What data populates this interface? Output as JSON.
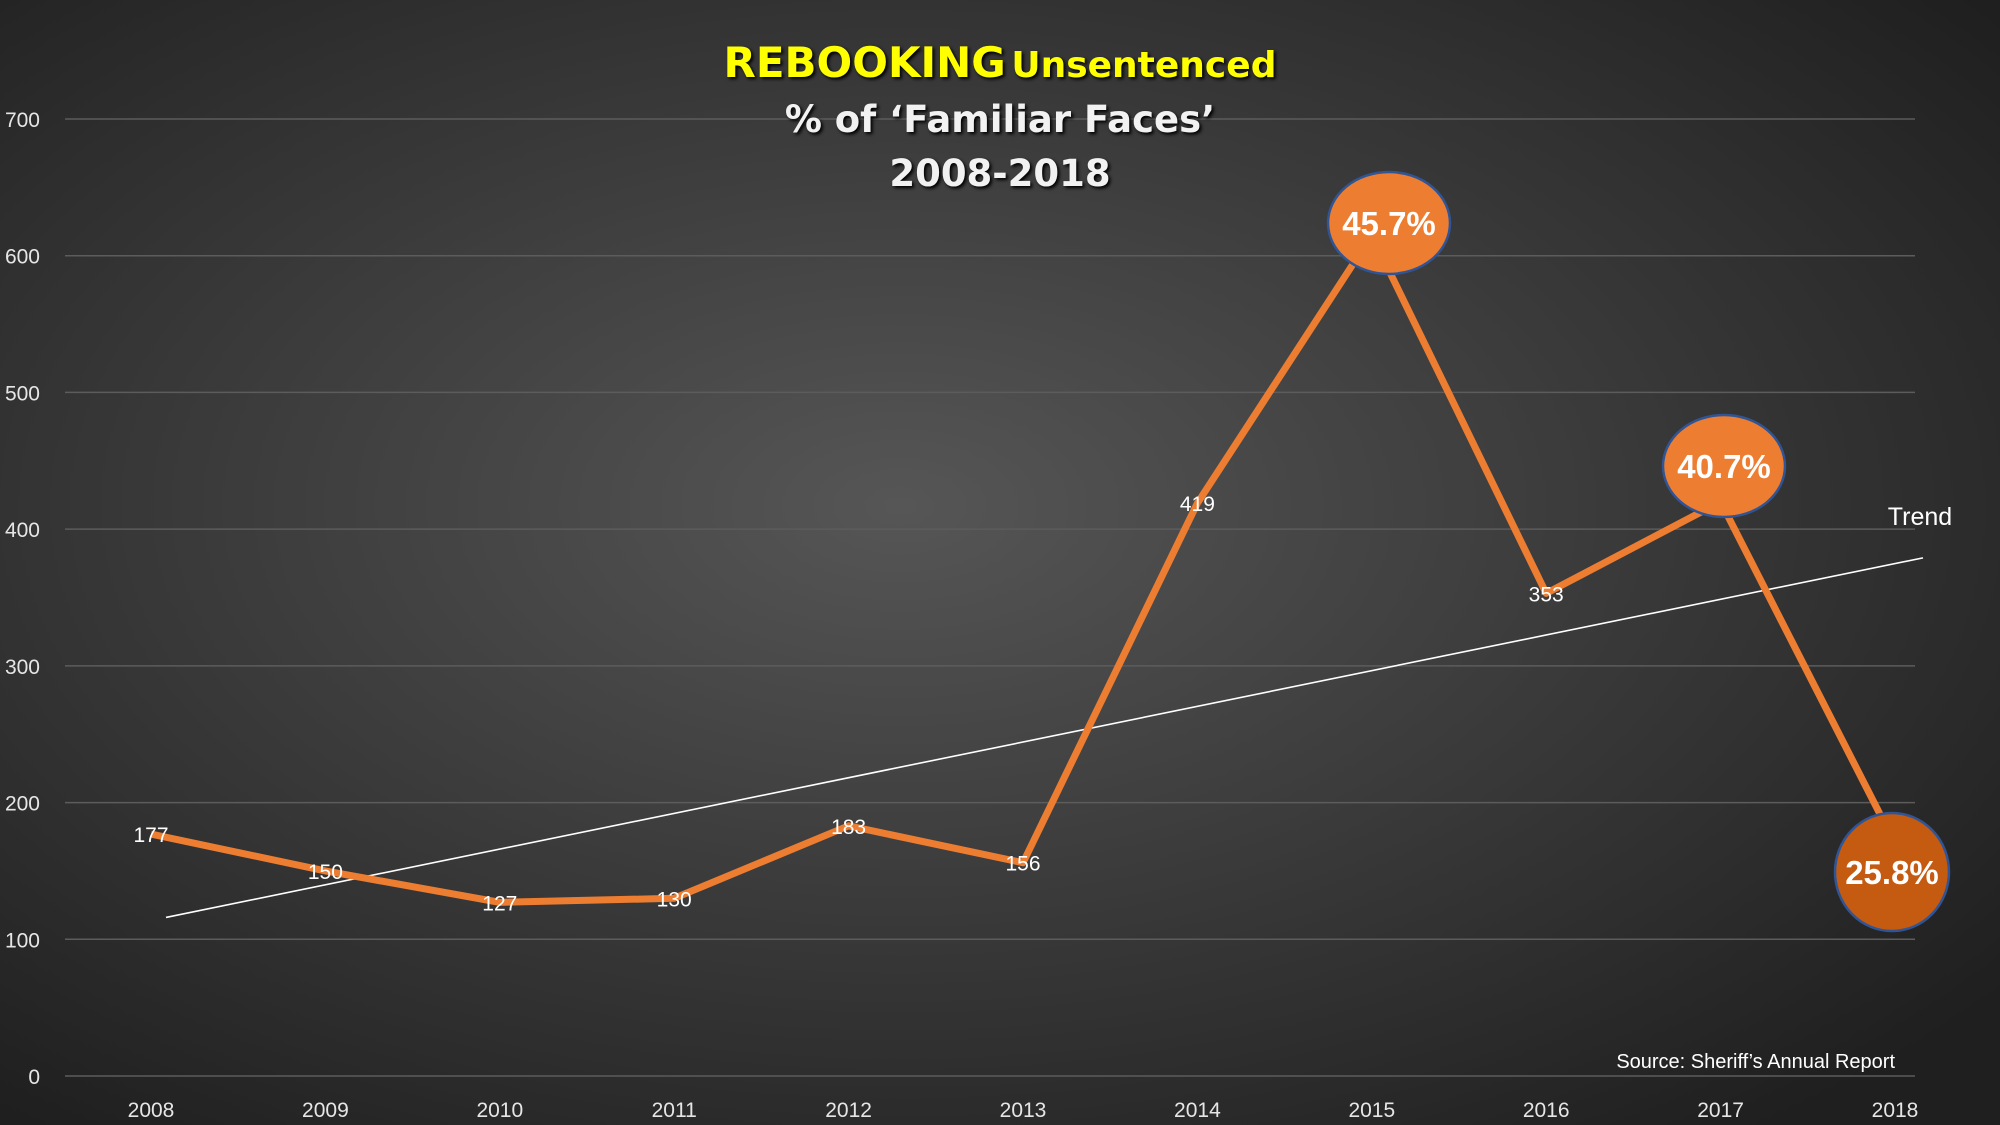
{
  "chart_data": {
    "type": "line",
    "title_main": "REBOOKING",
    "title_sub": "Unsentenced",
    "subtitle": "% of ‘Familiar Faces’",
    "subtitle2": "2008-2018",
    "xlabel": "",
    "ylabel": "",
    "ylim": [
      0,
      700
    ],
    "yticks": [
      0,
      100,
      200,
      300,
      400,
      500,
      600,
      700
    ],
    "categories": [
      "2008",
      "2009",
      "2010",
      "2011",
      "2012",
      "2013",
      "2014",
      "2015",
      "2016",
      "2017",
      "2018"
    ],
    "series": [
      {
        "name": "Rebooking Unsentenced",
        "color": "#ED7D31",
        "values": [
          177,
          150,
          127,
          130,
          183,
          156,
          419,
          615,
          353,
          420,
          170
        ],
        "labels": [
          "177",
          "150",
          "127",
          "130",
          "183",
          "156",
          "419",
          null,
          "353",
          null,
          null
        ]
      }
    ],
    "callouts": [
      {
        "category": "2015",
        "text": "45.7%",
        "fill": "#ED7D31"
      },
      {
        "category": "2017",
        "text": "40.7%",
        "fill": "#ED7D31"
      },
      {
        "category": "2018",
        "text": "25.8%",
        "fill": "#C55A11"
      }
    ],
    "trend": {
      "label": "Trend",
      "start_value": 116,
      "end_value": 376,
      "color": "#ffffff"
    },
    "grid": true,
    "source": "Source: Sheriff’s Annual Report"
  }
}
